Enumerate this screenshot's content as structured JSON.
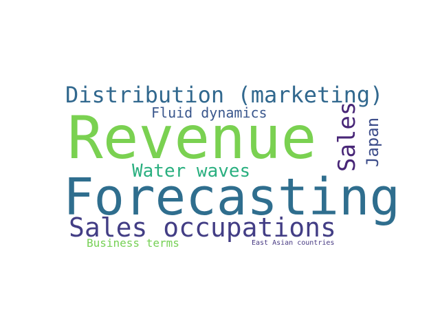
{
  "words": {
    "revenue": {
      "text": "Revenue",
      "color": "#7ad151"
    },
    "forecasting": {
      "text": "Forecasting",
      "color": "#2f6e8e"
    },
    "distribution": {
      "text": "Distribution (marketing)",
      "color": "#31688e"
    },
    "sales_occupations": {
      "text": "Sales occupations",
      "color": "#433e85"
    },
    "water_waves": {
      "text": "Water waves",
      "color": "#29af7f"
    },
    "fluid_dynamics": {
      "text": "Fluid dynamics",
      "color": "#39568c"
    },
    "sales": {
      "text": "Sales",
      "color": "#482677"
    },
    "japan": {
      "text": "Japan",
      "color": "#3d4d8a"
    },
    "business_terms": {
      "text": "Business terms",
      "color": "#75d054"
    },
    "east_asian_countries": {
      "text": "East Asian countries",
      "color": "#453781"
    }
  }
}
